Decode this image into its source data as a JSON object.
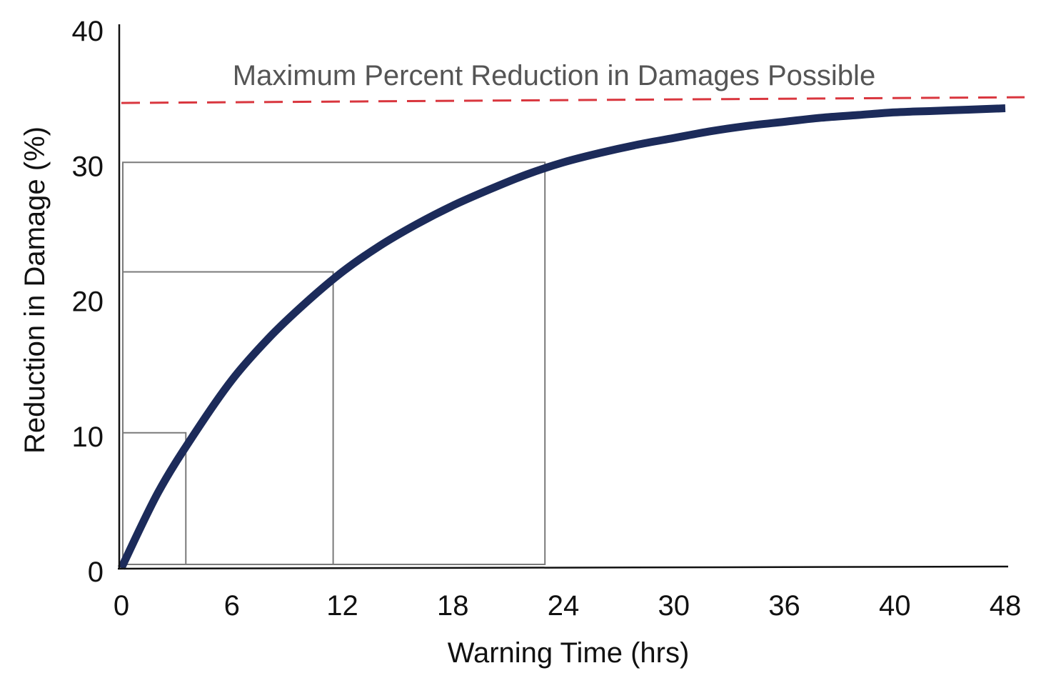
{
  "chart_data": {
    "type": "line",
    "title": "",
    "xlabel": "Warning Time (hrs)",
    "ylabel": "Reduction in Damage (%)",
    "xlim": [
      0,
      48
    ],
    "ylim": [
      0,
      40
    ],
    "x_ticks": [
      "0",
      "6",
      "12",
      "18",
      "24",
      "30",
      "36",
      "40",
      "48"
    ],
    "y_ticks": [
      "0",
      "10",
      "20",
      "30",
      "40"
    ],
    "grid": false,
    "series": [
      {
        "x": [
          0,
          2,
          4,
          6,
          8,
          10,
          12,
          14,
          16,
          18,
          20,
          22,
          24,
          26,
          28,
          30,
          32,
          34,
          36,
          38,
          40,
          42,
          44,
          46,
          48
        ],
        "y": [
          0,
          5.6,
          10.0,
          13.9,
          17.0,
          19.6,
          21.9,
          23.8,
          25.4,
          26.8,
          28.0,
          29.1,
          30.0,
          30.7,
          31.3,
          31.8,
          32.3,
          32.7,
          33.0,
          33.3,
          33.5,
          33.7,
          33.8,
          33.9,
          34.0
        ],
        "color": "#1c2b5a"
      }
    ],
    "reference_line": {
      "label": "Maximum Percent Reduction in Damages Possible",
      "y": 34.5,
      "style": "dashed",
      "color": "#d9363e"
    },
    "highlight_boxes": [
      {
        "x": 3.5,
        "y": 10
      },
      {
        "x": 11.5,
        "y": 21.9
      },
      {
        "x": 23,
        "y": 30
      }
    ]
  }
}
